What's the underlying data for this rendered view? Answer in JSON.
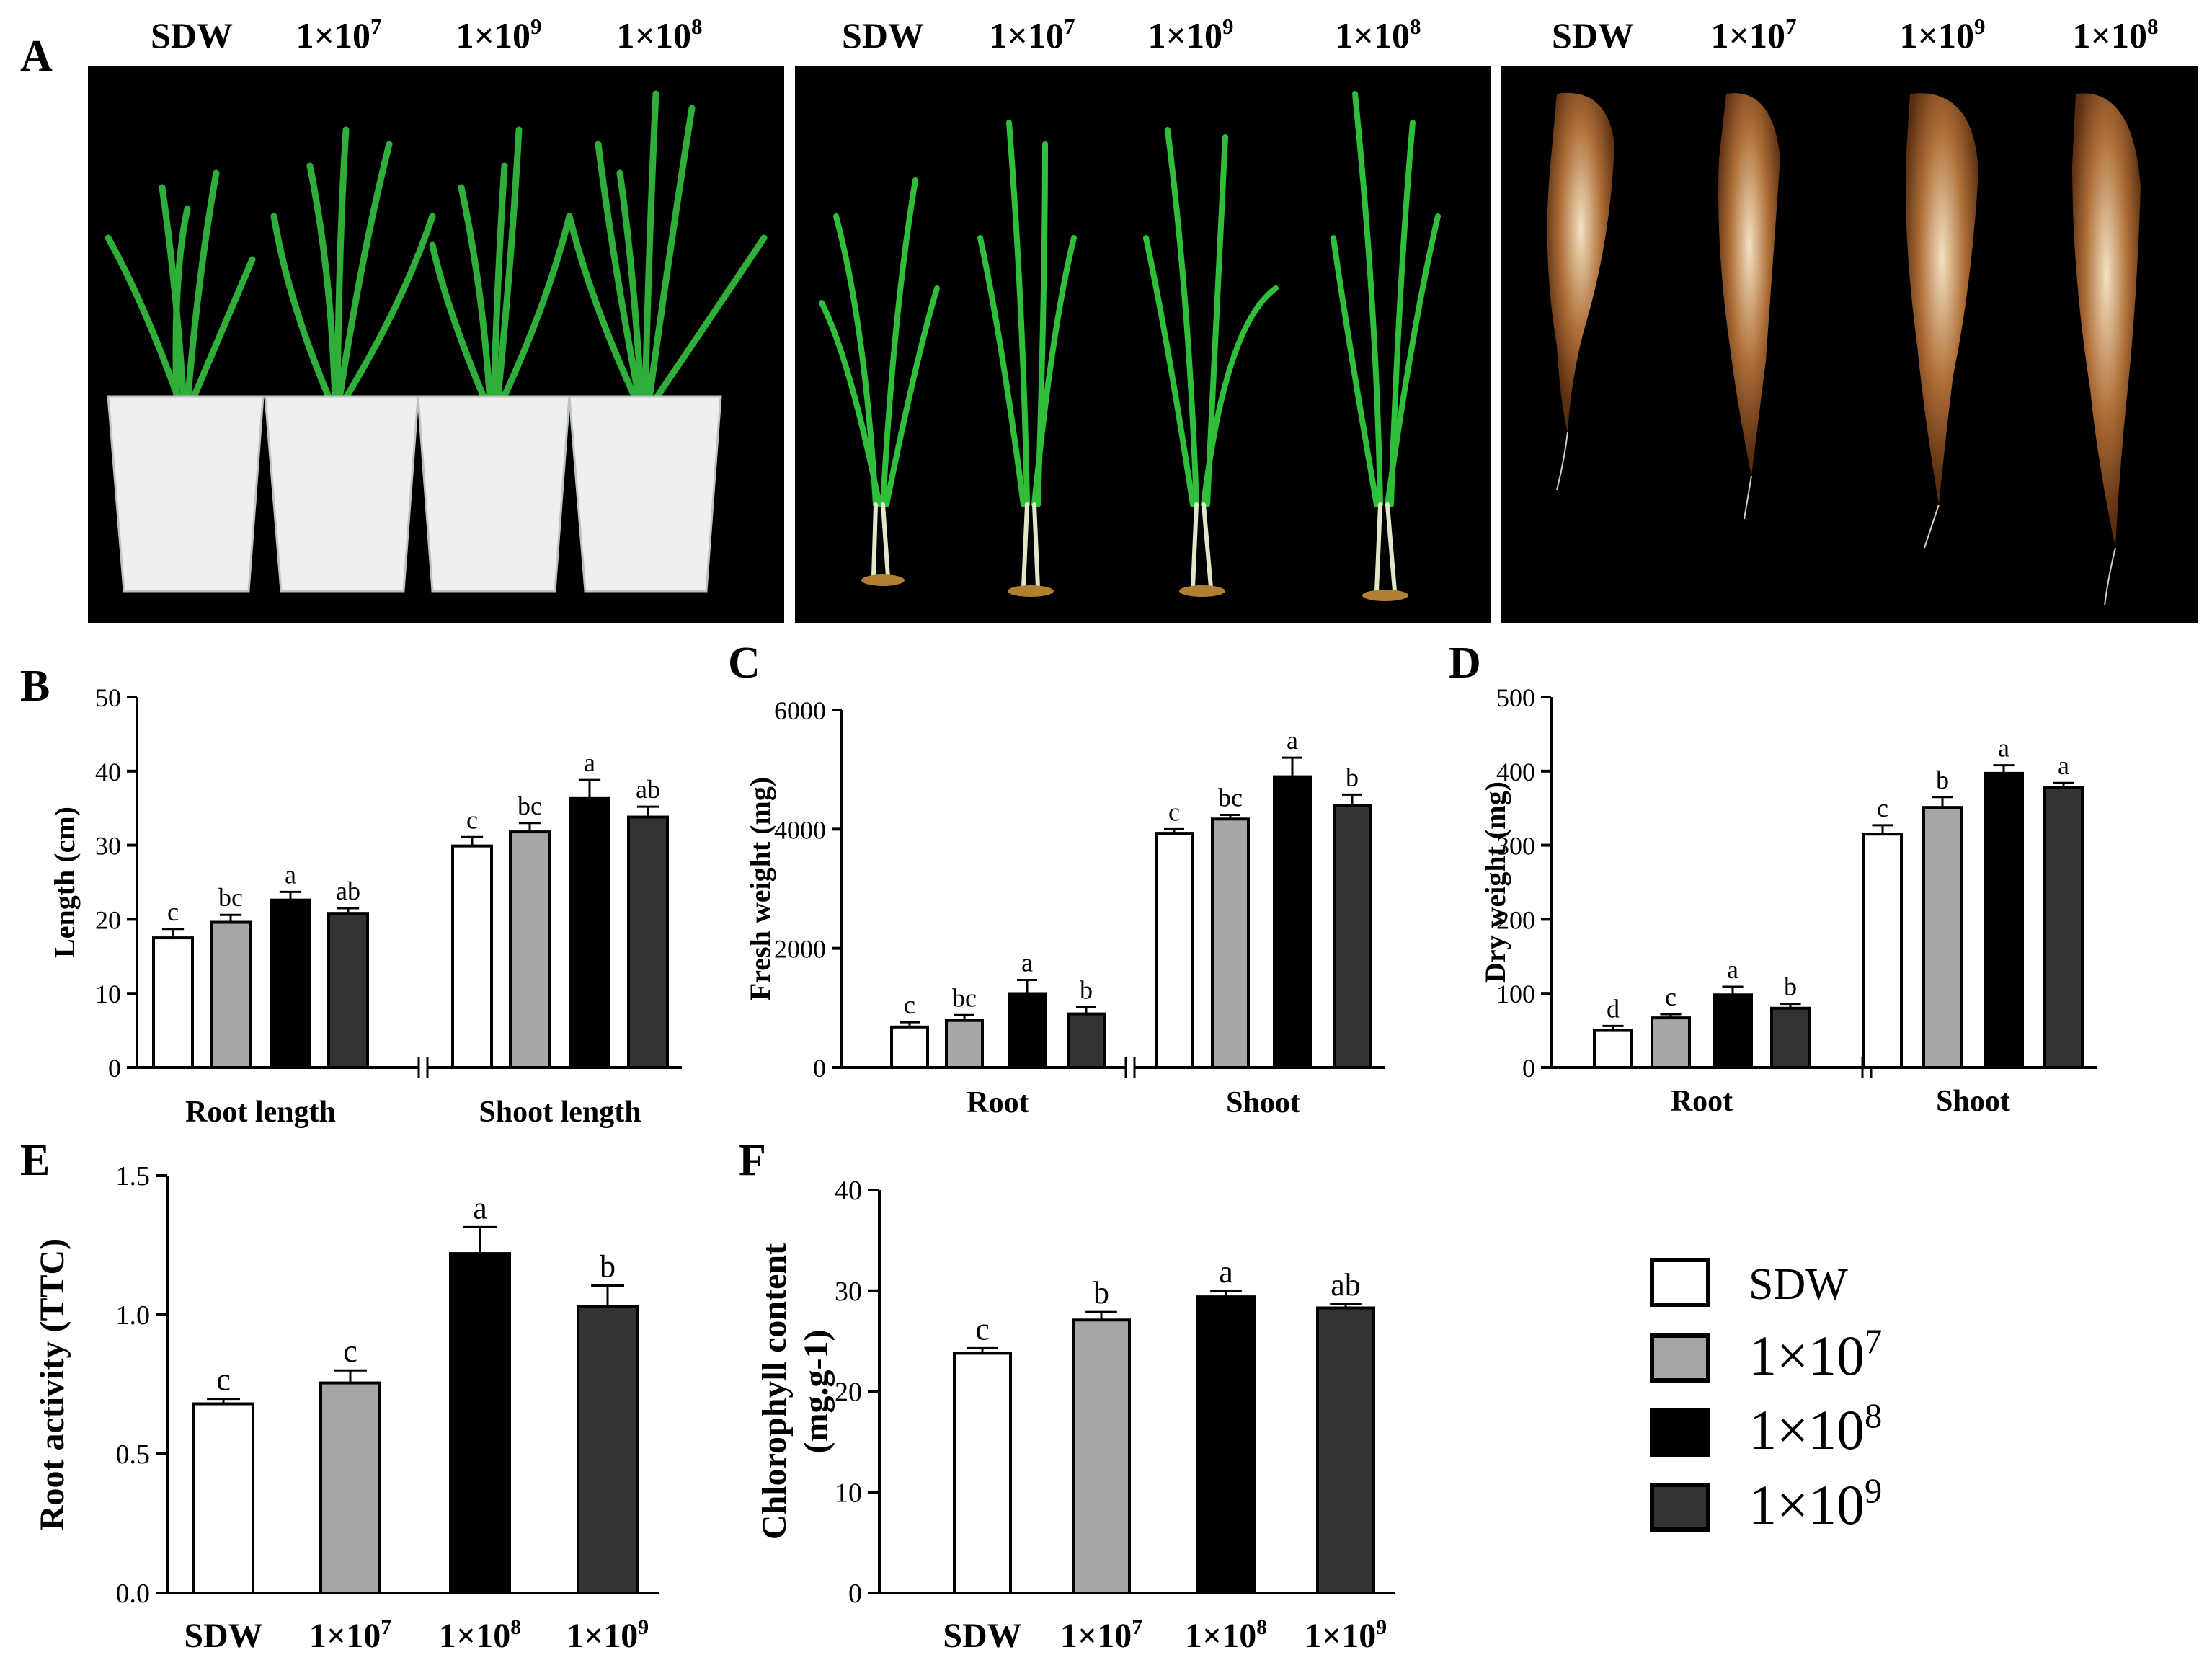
{
  "panel_A": {
    "letter": "A",
    "photos": [
      {
        "labels": [
          "SDW",
          "1×10",
          "1×10",
          "1×10"
        ],
        "sups": [
          "",
          "7",
          "9",
          "8"
        ],
        "content": "potted-seedlings"
      },
      {
        "labels": [
          "SDW",
          "1×10",
          "1×10",
          "1×10"
        ],
        "sups": [
          "",
          "7",
          "9",
          "8"
        ],
        "content": "washed-seedlings"
      },
      {
        "labels": [
          "SDW",
          "1×10",
          "1×10",
          "1×10"
        ],
        "sups": [
          "",
          "7",
          "9",
          "8"
        ],
        "content": "roots"
      }
    ]
  },
  "legend": {
    "entries": [
      {
        "base": "SDW",
        "sup": "",
        "color": "#ffffff"
      },
      {
        "base": "1×10",
        "sup": "7",
        "color": "#a6a6a8"
      },
      {
        "base": "1×10",
        "sup": "8",
        "color": "#000000"
      },
      {
        "base": "1×10",
        "sup": "9",
        "color": "#333333"
      }
    ]
  },
  "chart_data": [
    {
      "panel": "B",
      "type": "bar",
      "ylabel": "Length (cm)",
      "ylim": [
        0,
        50
      ],
      "yticks": [
        0,
        10,
        20,
        30,
        40,
        50
      ],
      "groups": [
        {
          "label": "Root length",
          "values": [
            17.5,
            19.6,
            22.6,
            20.8
          ],
          "errors": [
            1.2,
            1.0,
            1.1,
            0.7
          ],
          "letters": [
            "c",
            "bc",
            "a",
            "ab"
          ]
        },
        {
          "label": "Shoot length",
          "values": [
            29.9,
            31.8,
            36.3,
            33.8
          ],
          "errors": [
            1.2,
            1.2,
            2.5,
            1.4
          ],
          "letters": [
            "c",
            "bc",
            "a",
            "ab"
          ]
        }
      ]
    },
    {
      "panel": "C",
      "type": "bar",
      "ylabel": "Fresh weight (mg)",
      "ylim": [
        0,
        6000
      ],
      "yticks": [
        0,
        2000,
        4000,
        6000
      ],
      "groups": [
        {
          "label": "Root",
          "values": [
            680,
            790,
            1240,
            900
          ],
          "errors": [
            80,
            90,
            230,
            110
          ],
          "letters": [
            "c",
            "bc",
            "a",
            "b"
          ]
        },
        {
          "label": "Shoot",
          "values": [
            3930,
            4170,
            4880,
            4400
          ],
          "errors": [
            70,
            70,
            320,
            180
          ],
          "letters": [
            "c",
            "bc",
            "a",
            "b"
          ]
        }
      ]
    },
    {
      "panel": "D",
      "type": "bar",
      "ylabel": "Dry weight (mg)",
      "ylim": [
        0,
        500
      ],
      "yticks": [
        0,
        100,
        200,
        300,
        400,
        500
      ],
      "groups": [
        {
          "label": "Root",
          "values": [
            50,
            67,
            98,
            80
          ],
          "errors": [
            6,
            5,
            11,
            6
          ],
          "letters": [
            "d",
            "c",
            "a",
            "b"
          ]
        },
        {
          "label": "Shoot",
          "values": [
            315,
            351,
            397,
            378
          ],
          "errors": [
            12,
            14,
            11,
            6
          ],
          "letters": [
            "c",
            "b",
            "a",
            "a"
          ]
        }
      ]
    },
    {
      "panel": "E",
      "type": "bar",
      "ylabel": "Root activity (TTC)",
      "ylim": [
        0,
        1.5
      ],
      "yticks": [
        "0.0",
        "0.5",
        "1.0",
        "1.5"
      ],
      "categories": [
        "SDW",
        "1×10",
        "1×10",
        "1×10"
      ],
      "sups": [
        "",
        "7",
        "8",
        "9"
      ],
      "values": [
        0.68,
        0.755,
        1.22,
        1.03
      ],
      "errors": [
        0.018,
        0.045,
        0.095,
        0.075
      ],
      "letters": [
        "c",
        "c",
        "a",
        "b"
      ]
    },
    {
      "panel": "F",
      "type": "bar",
      "ylabel": "Chlorophyll content",
      "ylabel2": "(mg.g-1)",
      "ylim": [
        0,
        40
      ],
      "yticks": [
        0,
        10,
        20,
        30,
        40
      ],
      "categories": [
        "SDW",
        "1×10",
        "1×10",
        "1×10"
      ],
      "sups": [
        "",
        "7",
        "8",
        "9"
      ],
      "values": [
        23.8,
        27.1,
        29.4,
        28.3
      ],
      "errors": [
        0.5,
        0.8,
        0.6,
        0.4
      ],
      "letters": [
        "c",
        "b",
        "a",
        "ab"
      ]
    }
  ]
}
